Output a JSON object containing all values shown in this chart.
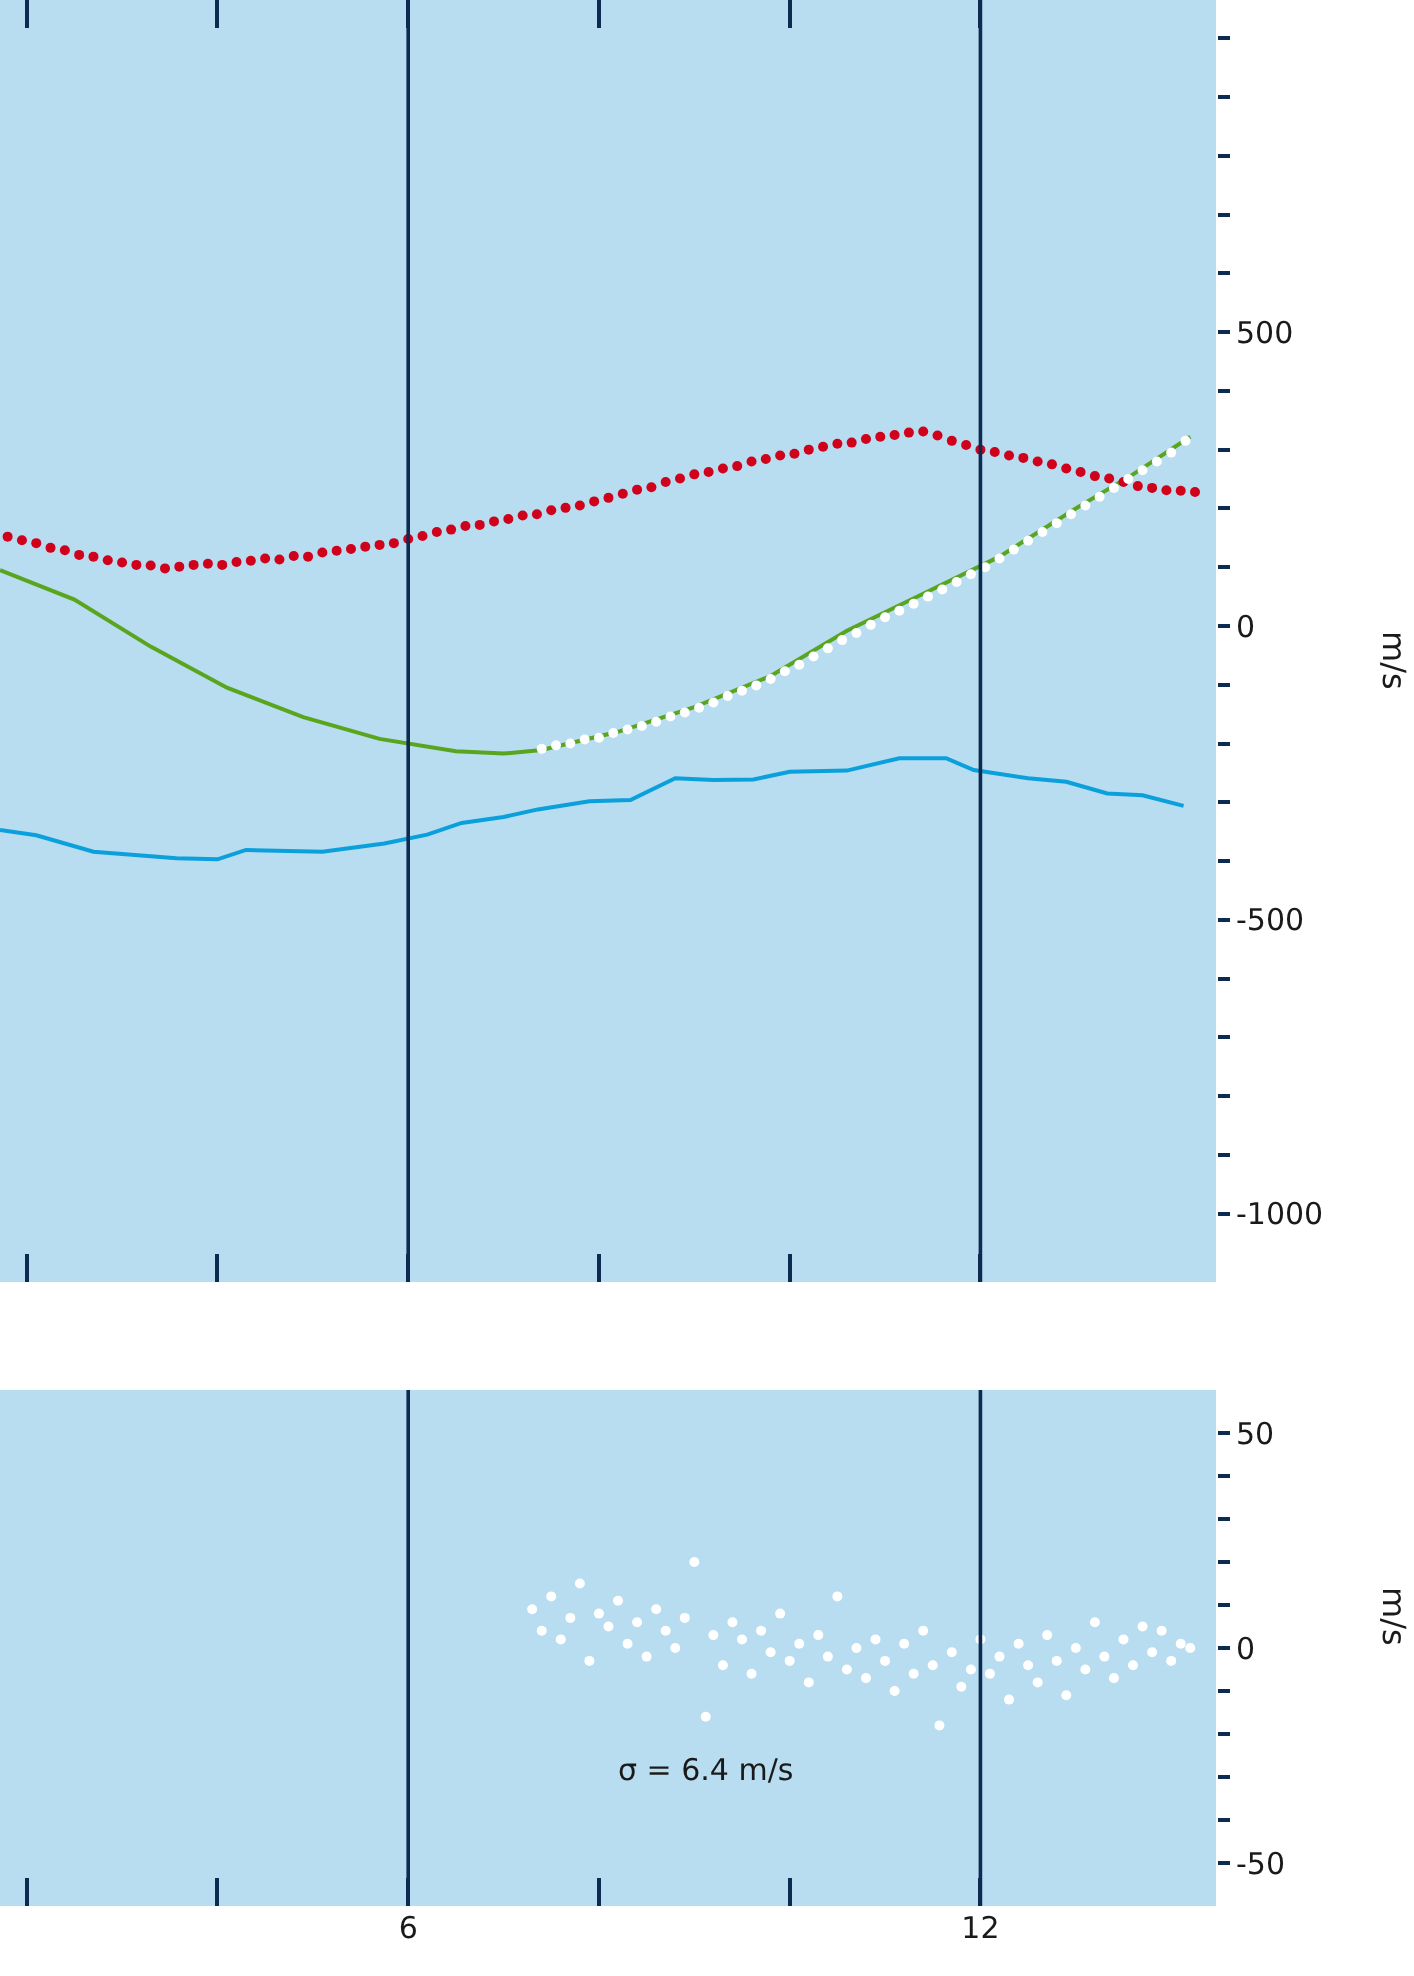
{
  "chart_data": [
    {
      "type": "scatter",
      "ylabel": "m/s",
      "xlim": [
        1.72,
        14.47
      ],
      "ylim": [
        -1116,
        1065
      ],
      "tick_labels": "y",
      "grid": false,
      "legend": false,
      "marker": "circle",
      "xticks": [
        {
          "value": 2,
          "label": null
        },
        {
          "value": 4,
          "label": null
        },
        6,
        {
          "value": 8,
          "label": null
        },
        {
          "value": 10,
          "label": null
        },
        12
      ],
      "yticks": [
        -1000,
        {
          "value": -900,
          "label": null
        },
        {
          "value": -800,
          "label": null
        },
        {
          "value": -700,
          "label": null
        },
        {
          "value": -600,
          "label": null
        },
        -500,
        {
          "value": -400,
          "label": null
        },
        {
          "value": -300,
          "label": null
        },
        {
          "value": -200,
          "label": null
        },
        {
          "value": -100,
          "label": null
        },
        0,
        {
          "value": 100,
          "label": null
        },
        {
          "value": 200,
          "label": null
        },
        {
          "value": 300,
          "label": null
        },
        {
          "value": 400,
          "label": null
        },
        500,
        {
          "value": 600,
          "label": null
        },
        {
          "value": 700,
          "label": null
        },
        {
          "value": 800,
          "label": null
        },
        {
          "value": 900,
          "label": null
        },
        {
          "value": 1000,
          "label": null
        }
      ],
      "ref_lines": [
        {
          "axis": "x",
          "value": 6,
          "color": "#0d2a50"
        },
        {
          "axis": "x",
          "value": 12,
          "color": "#0d2a50"
        }
      ],
      "series": [
        {
          "type": "line",
          "marker": "none",
          "color": "#0aa0dc",
          "x": [
            1.72,
            2.1,
            2.7,
            3.0,
            3.57,
            4.0,
            4.3,
            5.1,
            5.75,
            6.2,
            6.56,
            7.0,
            7.36,
            7.9,
            8.33,
            8.8,
            9.2,
            9.62,
            10.0,
            10.6,
            11.15,
            11.64,
            11.93,
            12.5,
            12.9,
            13.33,
            13.7,
            14.13
          ],
          "values": [
            -347,
            -356,
            -384,
            -388,
            -395,
            -397,
            -381,
            -384,
            -370,
            -355,
            -335,
            -325,
            -312,
            -298,
            -296,
            -259,
            -262,
            -261,
            -248,
            -246,
            -225,
            -225,
            -245,
            -259,
            -265,
            -285,
            -288,
            -306
          ]
        },
        {
          "type": "line",
          "marker": "none",
          "color": "#5aa51e",
          "x": [
            1.72,
            2.5,
            3.3,
            4.1,
            4.9,
            5.7,
            6.5,
            7.0,
            7.4,
            8.2,
            9.0,
            9.8,
            10.6,
            11.4,
            12.2,
            13.0,
            13.6,
            14.2
          ],
          "values": [
            95,
            45,
            -35,
            -105,
            -155,
            -192,
            -213,
            -217,
            -211,
            -180,
            -138,
            -85,
            -8,
            55,
            118,
            200,
            258,
            322
          ]
        },
        {
          "color": "#d0021b",
          "x": [
            1.8,
            1.95,
            2.1,
            2.25,
            2.4,
            2.55,
            2.7,
            2.85,
            3.0,
            3.15,
            3.3,
            3.45,
            3.6,
            3.75,
            3.9,
            4.05,
            4.2,
            4.35,
            4.5,
            4.65,
            4.8,
            4.95,
            5.1,
            5.25,
            5.4,
            5.55,
            5.7,
            5.85,
            6.0,
            6.15,
            6.3,
            6.45,
            6.6,
            6.75,
            6.9,
            7.05,
            7.2,
            7.35,
            7.5,
            7.65,
            7.8,
            7.95,
            8.1,
            8.25,
            8.4,
            8.55,
            8.7,
            8.85,
            9.0,
            9.15,
            9.3,
            9.45,
            9.6,
            9.75,
            9.9,
            10.05,
            10.2,
            10.35,
            10.5,
            10.65,
            10.8,
            10.95,
            11.1,
            11.25,
            11.4,
            11.55,
            11.7,
            11.85,
            12.0,
            12.15,
            12.3,
            12.45,
            12.6,
            12.75,
            12.9,
            13.05,
            13.2,
            13.35,
            13.5,
            13.65,
            13.8,
            13.95,
            14.1,
            14.25
          ],
          "values": [
            152,
            146,
            141,
            133,
            129,
            121,
            118,
            112,
            108,
            104,
            103,
            98,
            101,
            104,
            106,
            104,
            109,
            111,
            115,
            113,
            119,
            118,
            125,
            128,
            131,
            135,
            138,
            141,
            148,
            153,
            160,
            164,
            170,
            172,
            178,
            182,
            188,
            190,
            197,
            201,
            205,
            212,
            218,
            225,
            232,
            236,
            245,
            251,
            258,
            262,
            268,
            272,
            280,
            284,
            290,
            293,
            300,
            305,
            310,
            312,
            318,
            322,
            325,
            329,
            331,
            324,
            315,
            308,
            300,
            296,
            290,
            286,
            280,
            275,
            268,
            262,
            255,
            251,
            245,
            238,
            235,
            231,
            230,
            228
          ]
        },
        {
          "color": "#ffffff",
          "x": [
            7.4,
            7.55,
            7.7,
            7.85,
            8.0,
            8.15,
            8.3,
            8.45,
            8.6,
            8.75,
            8.9,
            9.05,
            9.2,
            9.35,
            9.5,
            9.65,
            9.8,
            9.95,
            10.1,
            10.25,
            10.4,
            10.55,
            10.7,
            10.85,
            11.0,
            11.15,
            11.3,
            11.45,
            11.6,
            11.75,
            11.9,
            12.05,
            12.2,
            12.35,
            12.5,
            12.65,
            12.8,
            12.95,
            13.1,
            13.25,
            13.4,
            13.55,
            13.7,
            13.85,
            14.0,
            14.15
          ],
          "values": [
            -209,
            -203,
            -200,
            -193,
            -190,
            -182,
            -176,
            -170,
            -163,
            -154,
            -147,
            -139,
            -130,
            -119,
            -110,
            -101,
            -90,
            -77,
            -66,
            -52,
            -38,
            -24,
            -12,
            2,
            15,
            26,
            38,
            50,
            62,
            75,
            88,
            100,
            115,
            130,
            145,
            160,
            175,
            190,
            205,
            220,
            235,
            250,
            265,
            280,
            295,
            315
          ]
        }
      ]
    },
    {
      "type": "scatter",
      "ylabel": "m/s",
      "xlim": [
        1.72,
        14.47
      ],
      "ylim": [
        -60,
        60
      ],
      "grid": false,
      "legend": false,
      "marker": "circle",
      "xticks": [
        {
          "value": 2,
          "label": null
        },
        {
          "value": 4,
          "label": null
        },
        6,
        {
          "value": 8,
          "label": null
        },
        {
          "value": 10,
          "label": null
        },
        12
      ],
      "yticks": [
        -50,
        {
          "value": -40,
          "label": null
        },
        {
          "value": -30,
          "label": null
        },
        {
          "value": -20,
          "label": null
        },
        {
          "value": -10,
          "label": null
        },
        0,
        {
          "value": 10,
          "label": null
        },
        {
          "value": 20,
          "label": null
        },
        {
          "value": 30,
          "label": null
        },
        {
          "value": 40,
          "label": null
        },
        50
      ],
      "ref_lines": [
        {
          "axis": "x",
          "value": 6,
          "color": "#0d2a50"
        },
        {
          "axis": "x",
          "value": 12,
          "color": "#0d2a50"
        }
      ],
      "annotations": [
        "σ = 6.4 m/s"
      ],
      "series": [
        {
          "color": "#ffffff",
          "x": [
            7.3,
            7.4,
            7.5,
            7.6,
            7.7,
            7.8,
            7.9,
            8.0,
            8.1,
            8.2,
            8.3,
            8.4,
            8.5,
            8.6,
            8.7,
            8.8,
            8.9,
            9.0,
            9.12,
            9.2,
            9.3,
            9.4,
            9.5,
            9.6,
            9.7,
            9.8,
            9.9,
            10.0,
            10.1,
            10.2,
            10.3,
            10.4,
            10.5,
            10.6,
            10.7,
            10.8,
            10.9,
            11.0,
            11.1,
            11.2,
            11.3,
            11.4,
            11.5,
            11.57,
            11.7,
            11.8,
            11.9,
            12.0,
            12.1,
            12.2,
            12.3,
            12.4,
            12.5,
            12.6,
            12.7,
            12.8,
            12.9,
            13.0,
            13.1,
            13.2,
            13.3,
            13.4,
            13.5,
            13.6,
            13.7,
            13.8,
            13.9,
            14.0,
            14.1,
            14.2
          ],
          "values": [
            9,
            4,
            12,
            2,
            7,
            15,
            -3,
            8,
            5,
            11,
            1,
            6,
            -2,
            9,
            4,
            0,
            7,
            20,
            -16,
            3,
            -4,
            6,
            2,
            -6,
            4,
            -1,
            8,
            -3,
            1,
            -8,
            3,
            -2,
            12,
            -5,
            0,
            -7,
            2,
            -3,
            -10,
            1,
            -6,
            4,
            -4,
            -18,
            -1,
            -9,
            -5,
            2,
            -6,
            -2,
            -12,
            1,
            -4,
            -8,
            3,
            -3,
            -11,
            0,
            -5,
            6,
            -2,
            -7,
            2,
            -4,
            5,
            -1,
            4,
            -3,
            1,
            0
          ]
        }
      ]
    }
  ]
}
